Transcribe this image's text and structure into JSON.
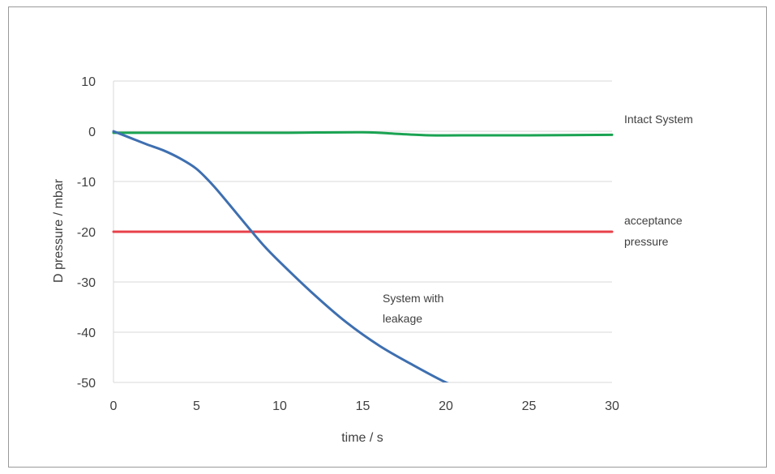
{
  "chart_data": {
    "type": "line",
    "title": "",
    "xlabel": "time / s",
    "ylabel": "D pressure / mbar",
    "xlim": [
      0,
      30
    ],
    "ylim": [
      -50,
      10
    ],
    "xticks": [
      "0",
      "5",
      "10",
      "15",
      "20",
      "25",
      "30"
    ],
    "yticks": [
      "10",
      "0",
      "-10",
      "-20",
      "-30",
      "-40",
      "-50"
    ],
    "grid": "horizontal",
    "legend": "none",
    "series": [
      {
        "name": "Intact System",
        "color": "#1aa352",
        "x": [
          0,
          5,
          10,
          15,
          17,
          19,
          22,
          25,
          30
        ],
        "y": [
          -0.3,
          -0.3,
          -0.3,
          -0.2,
          -0.5,
          -0.8,
          -0.8,
          -0.8,
          -0.7
        ]
      },
      {
        "name": "acceptance pressure",
        "color": "#e8404a",
        "x": [
          0,
          30
        ],
        "y": [
          -20,
          -20
        ]
      },
      {
        "name": "System with leakage",
        "color": "#3e6fb0",
        "x": [
          0,
          1,
          2,
          3,
          4,
          5,
          6,
          7,
          8,
          9,
          10,
          12,
          14,
          16,
          18,
          20,
          20.6
        ],
        "y": [
          0,
          -1.3,
          -2.6,
          -3.8,
          -5.4,
          -7.5,
          -10.8,
          -14.7,
          -18.7,
          -22.6,
          -26.0,
          -32.3,
          -38.0,
          -42.7,
          -46.5,
          -50.0,
          -50.5
        ]
      }
    ],
    "annotations": [
      {
        "text": "Intact System"
      },
      {
        "text": "acceptance"
      },
      {
        "text": "pressure"
      },
      {
        "text": "System with"
      },
      {
        "text": "leakage"
      }
    ]
  }
}
